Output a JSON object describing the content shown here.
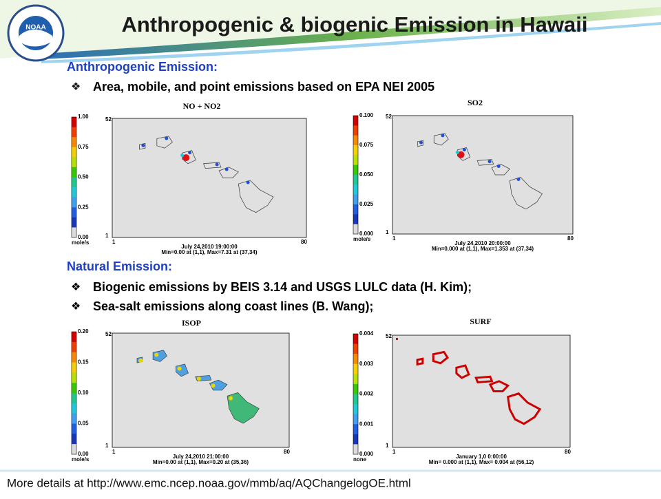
{
  "header": {
    "title": "Anthropogenic & biogenic Emission in Hawaii"
  },
  "sections": [
    {
      "heading": "Anthropogenic Emission:",
      "bullets": [
        "Area, mobile, and point emissions based on EPA NEI 2005"
      ]
    },
    {
      "heading": "Natural Emission:",
      "bullets": [
        "Biogenic emissions by BEIS 3.14 and USGS LULC data (H. Kim);",
        "Sea-salt emissions along coast lines (B. Wang);"
      ]
    }
  ],
  "panels": [
    {
      "title": "NO + NO2",
      "colorbar": [
        "1.00",
        "0.75",
        "0.50",
        "0.25",
        "0.00"
      ],
      "unit": "mole/s",
      "y_top": "52",
      "y_bottom": "1",
      "x_left": "1",
      "x_right": "80",
      "time": "July 24,2010 19:00:00",
      "stats": "Min=0.00 at (1,1), Max=7.31 at (37,34)"
    },
    {
      "title": "SO2",
      "colorbar": [
        "0.100",
        "0.075",
        "0.050",
        "0.025",
        "0.000"
      ],
      "unit": "mole/s",
      "y_top": "52",
      "y_bottom": "1",
      "x_left": "1",
      "x_right": "80",
      "time": "July 24,2010 20:00:00",
      "stats": "Min=0.000 at (1,1), Max=1.353 at (37,34)"
    },
    {
      "title": "ISOP",
      "colorbar": [
        "0.20",
        "0.15",
        "0.10",
        "0.05",
        "0.00"
      ],
      "unit": "mole/s",
      "y_top": "52",
      "y_bottom": "1",
      "x_left": "1",
      "x_right": "80",
      "time": "July 24,2010 21:00:00",
      "stats": "Min=0.00 at (1,1), Max=0.20 at (35,36)"
    },
    {
      "title": "SURF",
      "colorbar": [
        "0.004",
        "0.003",
        "0.002",
        "0.001",
        "0.000"
      ],
      "unit": "none",
      "y_top": "52",
      "y_bottom": "1",
      "x_left": "1",
      "x_right": "80",
      "time": "January 1,0 0:00:00",
      "stats": "Min=   0.000 at (1,1), Max=   0.004 at (56,12)"
    }
  ],
  "footer": "More details at http://www.emc.ncep.noaa.gov/mmb/aq/AQChangelogOE.html"
}
